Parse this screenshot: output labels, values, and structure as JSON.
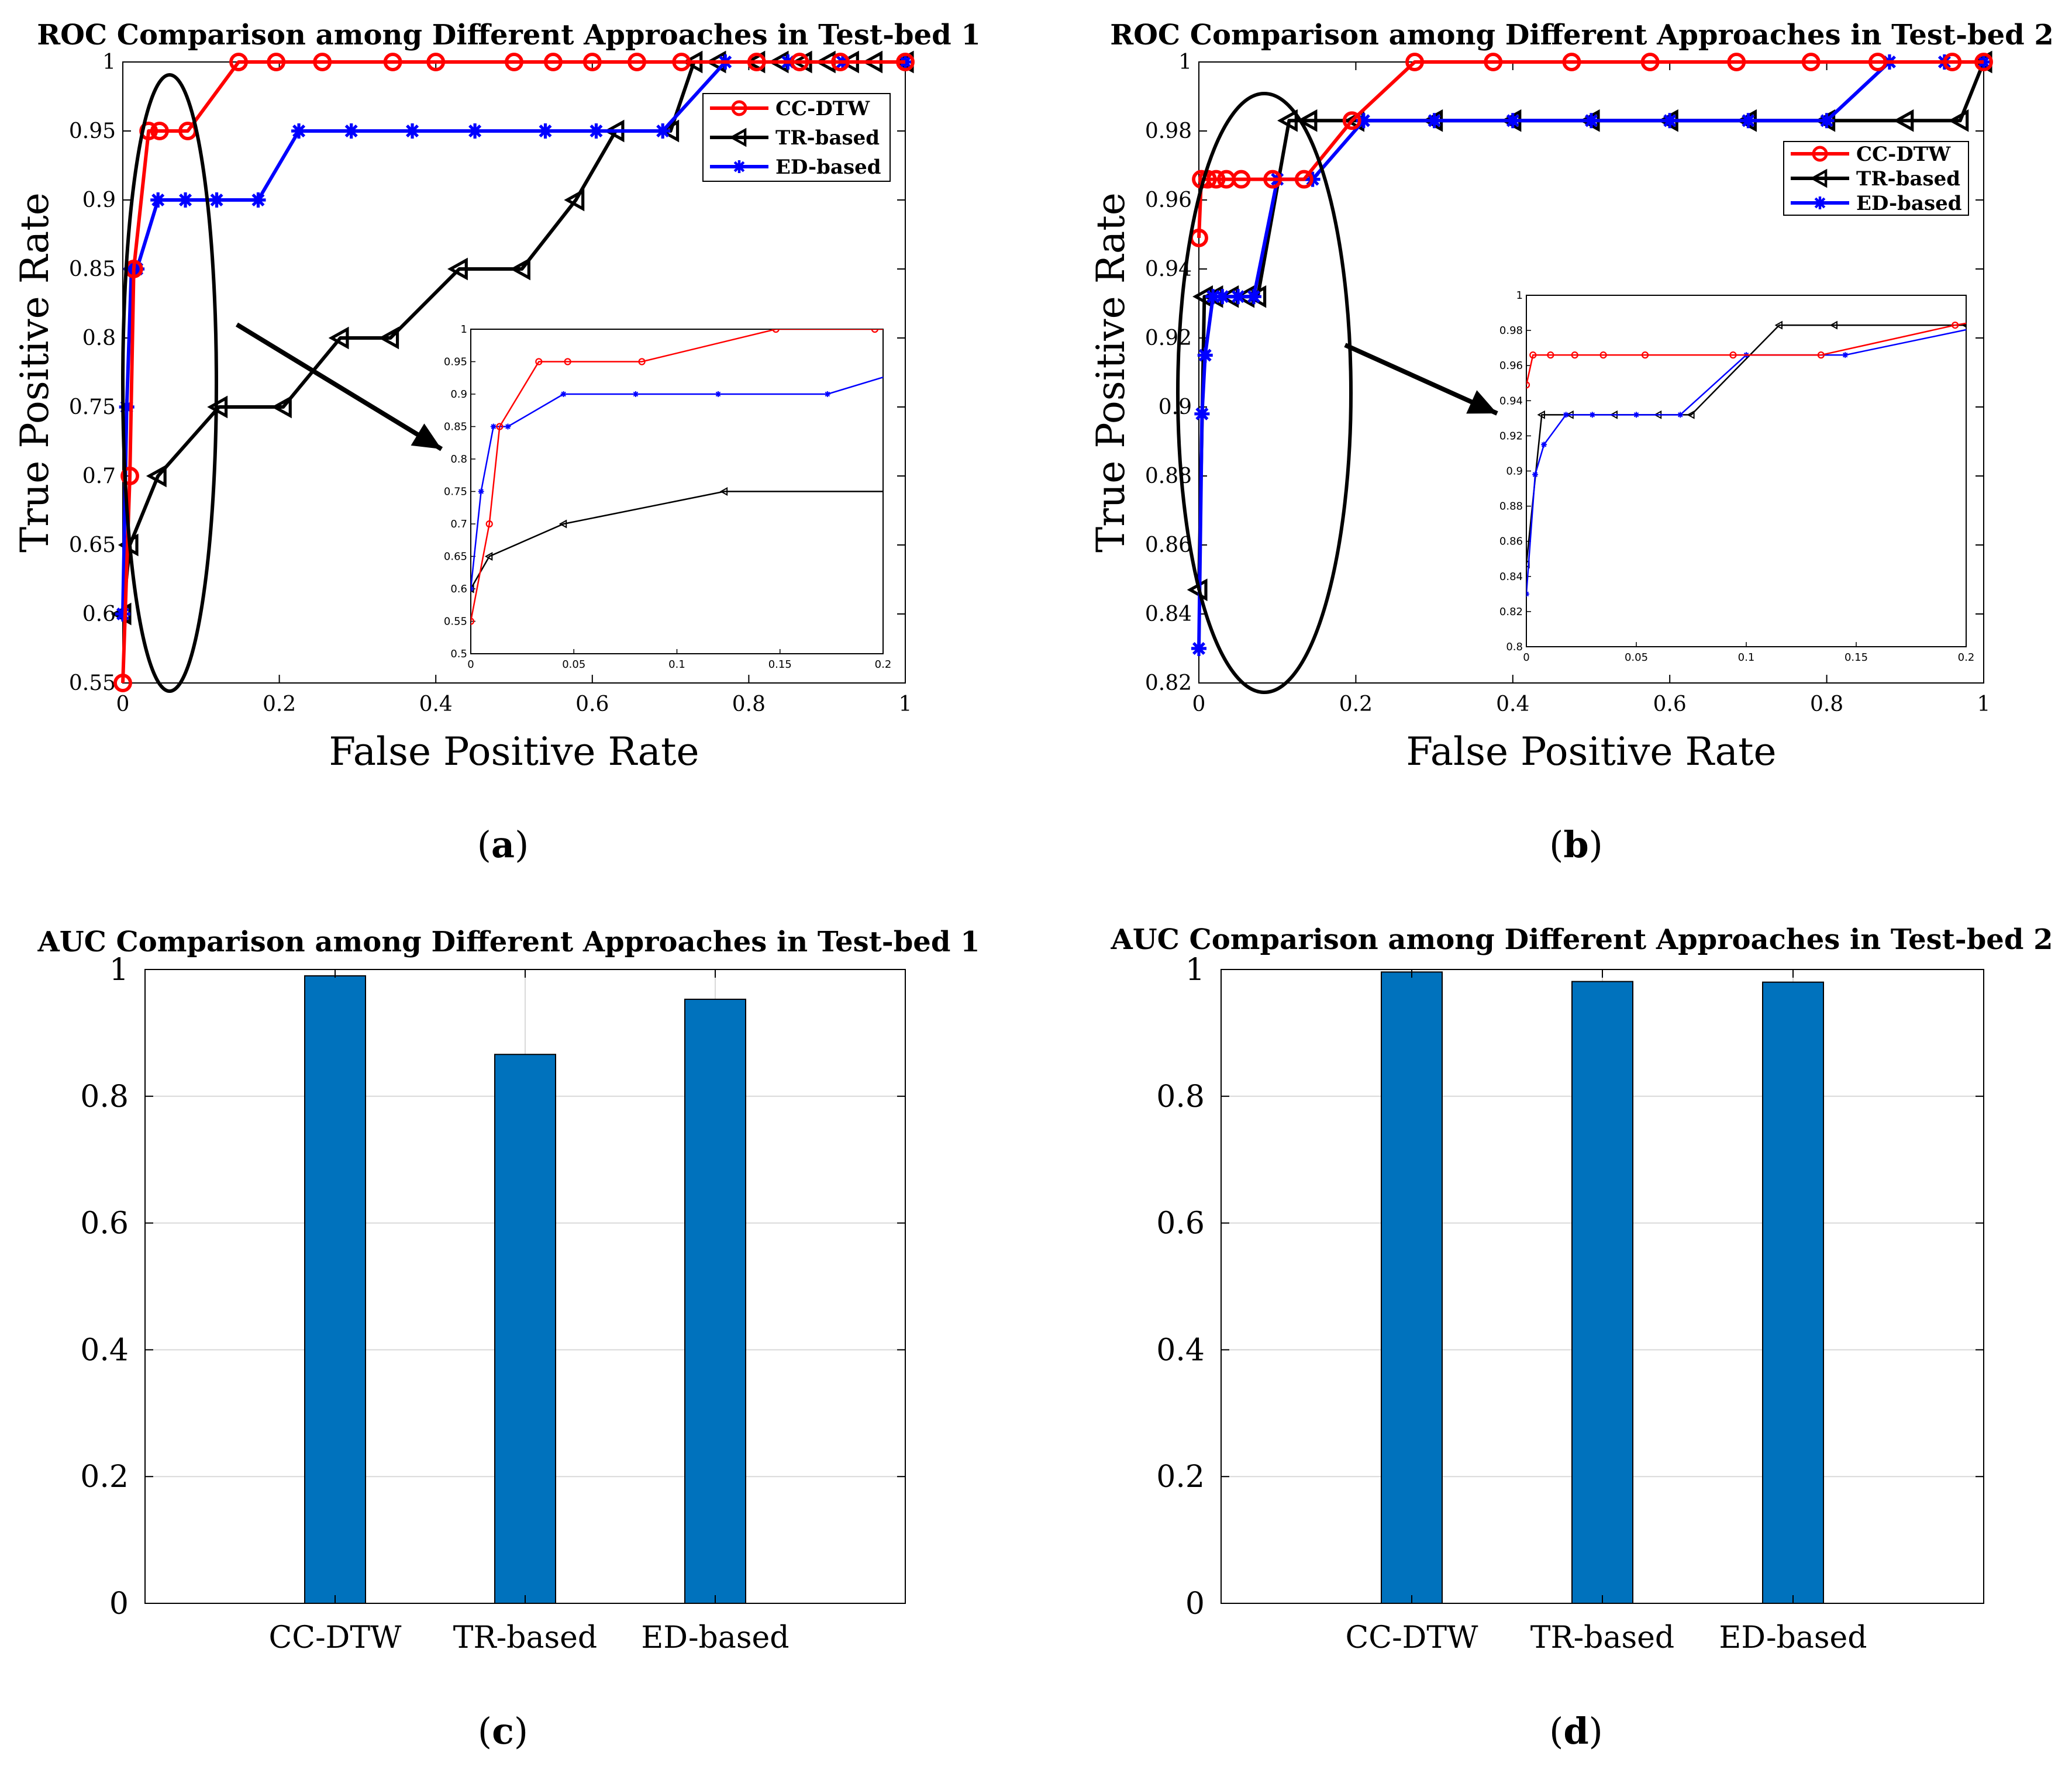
{
  "colors": {
    "cc": "#ff0000",
    "tr": "#000000",
    "ed": "#0000ff",
    "bar": "#0072bd",
    "grid": "#d9d9d9"
  },
  "chart_data": [
    {
      "id": "a",
      "type": "line",
      "caption_letter": "a",
      "title": "ROC Comparison among Different Approaches in Test-bed 1",
      "xlabel": "False Positive Rate",
      "ylabel": "True Positive Rate",
      "xlim": [
        0,
        1
      ],
      "ylim": [
        0.55,
        1
      ],
      "xticks": [
        "0",
        "0.2",
        "0.4",
        "0.6",
        "0.8",
        "1"
      ],
      "yticks": [
        "0.55",
        "0.6",
        "0.65",
        "0.7",
        "0.75",
        "0.8",
        "0.85",
        "0.9",
        "0.95",
        "1"
      ],
      "legend": [
        "CC-DTW",
        "TR-based",
        "ED-based"
      ],
      "legend_position": "top-right",
      "series": [
        {
          "name": "CC-DTW",
          "color_key": "cc",
          "marker": "circle",
          "x": [
            0,
            0.009,
            0.014,
            0.033,
            0.047,
            0.083,
            0.148,
            0.196,
            0.255,
            0.345,
            0.4,
            0.5,
            0.55,
            0.6,
            0.657,
            0.714,
            0.81,
            0.865,
            0.917,
            1.0
          ],
          "y": [
            0.55,
            0.7,
            0.85,
            0.95,
            0.95,
            0.95,
            1,
            1,
            1,
            1,
            1,
            1,
            1,
            1,
            1,
            1,
            1,
            1,
            1,
            1
          ]
        },
        {
          "name": "TR-based",
          "color_key": "tr",
          "marker": "triangle-left",
          "x": [
            0,
            0.009,
            0.045,
            0.123,
            0.205,
            0.278,
            0.342,
            0.43,
            0.51,
            0.579,
            0.63,
            0.7,
            0.73,
            0.76,
            0.81,
            0.84,
            0.87,
            0.9,
            0.93,
            0.96,
            1.0
          ],
          "y": [
            0.6,
            0.65,
            0.7,
            0.75,
            0.75,
            0.8,
            0.8,
            0.85,
            0.85,
            0.9,
            0.95,
            0.95,
            1,
            1,
            1,
            1,
            1,
            1,
            1,
            1,
            1
          ]
        },
        {
          "name": "ED-based",
          "color_key": "ed",
          "marker": "star",
          "x": [
            0,
            0.005,
            0.011,
            0.018,
            0.045,
            0.08,
            0.12,
            0.173,
            0.225,
            0.292,
            0.37,
            0.45,
            0.54,
            0.605,
            0.69,
            0.77,
            0.85,
            0.92,
            1.0
          ],
          "y": [
            0.6,
            0.75,
            0.85,
            0.85,
            0.9,
            0.9,
            0.9,
            0.9,
            0.95,
            0.95,
            0.95,
            0.95,
            0.95,
            0.95,
            0.95,
            1,
            1,
            1,
            1
          ]
        }
      ],
      "inset": {
        "xlim": [
          0,
          0.2
        ],
        "ylim": [
          0.5,
          1
        ],
        "xticks": [
          "0",
          "0.05",
          "0.1",
          "0.15",
          "0.2"
        ],
        "yticks": [
          "0.5",
          "0.55",
          "0.6",
          "0.65",
          "0.7",
          "0.75",
          "0.8",
          "0.85",
          "0.9",
          "0.95",
          "1"
        ]
      }
    },
    {
      "id": "b",
      "type": "line",
      "caption_letter": "b",
      "title": "ROC Comparison among Different Approaches in Test-bed 2",
      "xlabel": "False Positive Rate",
      "ylabel": "True Positive Rate",
      "xlim": [
        0,
        1
      ],
      "ylim": [
        0.82,
        1
      ],
      "xticks": [
        "0",
        "0.2",
        "0.4",
        "0.6",
        "0.8",
        "1"
      ],
      "yticks": [
        "0.82",
        "0.84",
        "0.86",
        "0.88",
        "0.9",
        "0.92",
        "0.94",
        "0.96",
        "0.98",
        "1"
      ],
      "legend": [
        "CC-DTW",
        "TR-based",
        "ED-based"
      ],
      "legend_position": "top-right",
      "series": [
        {
          "name": "CC-DTW",
          "color_key": "cc",
          "marker": "circle",
          "x": [
            0,
            0.003,
            0.011,
            0.022,
            0.035,
            0.054,
            0.094,
            0.134,
            0.195,
            0.275,
            0.375,
            0.475,
            0.575,
            0.685,
            0.78,
            0.865,
            0.96,
            1.0
          ],
          "y": [
            0.949,
            0.966,
            0.966,
            0.966,
            0.966,
            0.966,
            0.966,
            0.966,
            0.983,
            1,
            1,
            1,
            1,
            1,
            1,
            1,
            1,
            1
          ]
        },
        {
          "name": "TR-based",
          "color_key": "tr",
          "marker": "triangle-left",
          "x": [
            0,
            0.007,
            0.02,
            0.04,
            0.06,
            0.075,
            0.115,
            0.14,
            0.2,
            0.3,
            0.4,
            0.5,
            0.6,
            0.7,
            0.8,
            0.9,
            0.97,
            1.0
          ],
          "y": [
            0.847,
            0.932,
            0.932,
            0.932,
            0.932,
            0.932,
            0.983,
            0.983,
            0.983,
            0.983,
            0.983,
            0.983,
            0.983,
            0.983,
            0.983,
            0.983,
            0.983,
            1
          ]
        },
        {
          "name": "ED-based",
          "color_key": "ed",
          "marker": "star",
          "x": [
            0,
            0.004,
            0.008,
            0.018,
            0.03,
            0.05,
            0.07,
            0.1,
            0.145,
            0.21,
            0.3,
            0.4,
            0.5,
            0.6,
            0.7,
            0.8,
            0.88,
            0.95,
            1.0
          ],
          "y": [
            0.83,
            0.898,
            0.915,
            0.932,
            0.932,
            0.932,
            0.932,
            0.966,
            0.966,
            0.983,
            0.983,
            0.983,
            0.983,
            0.983,
            0.983,
            0.983,
            1,
            1,
            1
          ]
        }
      ],
      "inset": {
        "xlim": [
          0,
          0.2
        ],
        "ylim": [
          0.8,
          1
        ],
        "xticks": [
          "0",
          "0.05",
          "0.1",
          "0.15",
          "0.2"
        ],
        "yticks": [
          "0.8",
          "0.82",
          "0.84",
          "0.86",
          "0.88",
          "0.9",
          "0.92",
          "0.94",
          "0.96",
          "0.98",
          "1"
        ]
      }
    },
    {
      "id": "c",
      "type": "bar",
      "caption_letter": "c",
      "title": "AUC Comparison among  Different Approaches in Test-bed 1",
      "categories": [
        "CC-DTW",
        "TR-based",
        "ED-based"
      ],
      "values": [
        0.99,
        0.866,
        0.953
      ],
      "ylim": [
        0,
        1
      ],
      "yticks": [
        "0",
        "0.2",
        "0.4",
        "0.6",
        "0.8",
        "1"
      ],
      "grid": true
    },
    {
      "id": "d",
      "type": "bar",
      "caption_letter": "d",
      "title": "AUC Comparison among  Different Approaches in Test-bed 2",
      "categories": [
        "CC-DTW",
        "TR-based",
        "ED-based"
      ],
      "values": [
        0.996,
        0.981,
        0.98
      ],
      "ylim": [
        0,
        1
      ],
      "yticks": [
        "0",
        "0.2",
        "0.4",
        "0.6",
        "0.8",
        "1"
      ],
      "grid": true
    }
  ]
}
